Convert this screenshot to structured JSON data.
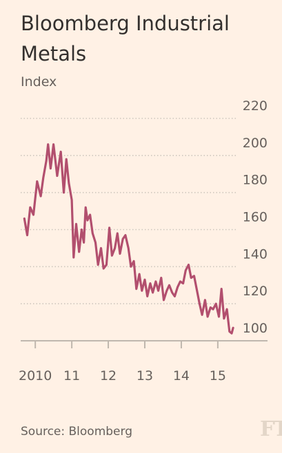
{
  "title": "Bloomberg Industrial Metals",
  "subtitle": "Index",
  "source": "Source: Bloomberg",
  "logo": "FT",
  "colors": {
    "series": "#b24f6e",
    "grid": "#cec6bd",
    "axis": "#bfb7ae",
    "text": "#66605c",
    "background": "#fff1e5"
  },
  "chart_data": {
    "type": "line",
    "title": "Bloomberg Industrial Metals",
    "subtitle": "Index",
    "ylabel": "",
    "xlabel": "",
    "ylim": [
      100,
      220
    ],
    "xlim": [
      2009.6,
      2015.55
    ],
    "yticks": [
      100,
      120,
      140,
      160,
      180,
      200,
      220
    ],
    "ytick_labels": [
      "100",
      "120",
      "140",
      "160",
      "180",
      "200",
      "220"
    ],
    "xticks": [
      2010,
      2011,
      2012,
      2013,
      2014,
      2015
    ],
    "xtick_labels": [
      "2010",
      "11",
      "12",
      "13",
      "14",
      "15"
    ],
    "grid": true,
    "y_axis_side": "right",
    "series": [
      {
        "x": [
          2009.7,
          2009.78,
          2009.86,
          2009.95,
          2010.05,
          2010.15,
          2010.22,
          2010.3,
          2010.35,
          2010.42,
          2010.5,
          2010.6,
          2010.7,
          2010.78,
          2010.85,
          2010.92,
          2011.0,
          2011.05,
          2011.12,
          2011.2,
          2011.27,
          2011.33,
          2011.38,
          2011.43,
          2011.5,
          2011.57,
          2011.65,
          2011.72,
          2011.8,
          2011.87,
          2011.95,
          2012.03,
          2012.1,
          2012.18,
          2012.25,
          2012.32,
          2012.4,
          2012.47,
          2012.55,
          2012.62,
          2012.7,
          2012.77,
          2012.85,
          2012.92,
          2013.0,
          2013.07,
          2013.15,
          2013.22,
          2013.3,
          2013.37,
          2013.45,
          2013.52,
          2013.6,
          2013.67,
          2013.75,
          2013.82,
          2013.9,
          2013.97,
          2014.05,
          2014.12,
          2014.2,
          2014.27,
          2014.35,
          2014.42,
          2014.5,
          2014.57,
          2014.65,
          2014.72,
          2014.8,
          2014.87,
          2014.95,
          2015.03,
          2015.1,
          2015.17,
          2015.25,
          2015.32,
          2015.38,
          2015.42
        ],
        "values": [
          166,
          157,
          172,
          168,
          186,
          178,
          188,
          197,
          206,
          193,
          206,
          189,
          202,
          180,
          198,
          185,
          176,
          145,
          163,
          148,
          160,
          153,
          172,
          165,
          168,
          158,
          153,
          141,
          150,
          139,
          141,
          161,
          146,
          150,
          158,
          147,
          155,
          157,
          150,
          140,
          143,
          128,
          136,
          127,
          133,
          124,
          131,
          126,
          132,
          127,
          134,
          122,
          127,
          130,
          126,
          124,
          129,
          132,
          131,
          138,
          141,
          134,
          135,
          128,
          120,
          114,
          122,
          113,
          118,
          117,
          120,
          113,
          128,
          112,
          117,
          105,
          104,
          107
        ]
      }
    ]
  }
}
